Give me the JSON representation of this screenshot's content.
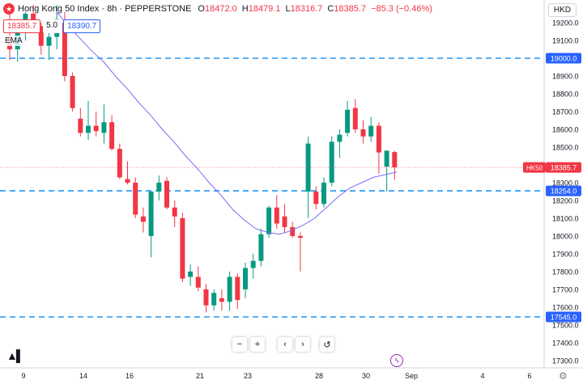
{
  "header": {
    "title": "Hong Kong 50 Index · 8h · PEPPERSTONE",
    "open_label": "O",
    "open": "18472.0",
    "high_label": "H",
    "high": "18479.1",
    "low_label": "L",
    "low": "18316.7",
    "close_label": "C",
    "close": "18385.7",
    "change": "−85.3 (−0.46%)"
  },
  "trade": {
    "sell": "18385.7",
    "spread": "5.0",
    "buy": "18390.7"
  },
  "indicator": "EMA",
  "currency": "HKD",
  "chart_data": {
    "type": "candlestick",
    "symbol": "HK50",
    "y_ticks": [
      17300,
      17400,
      17500,
      17600,
      17700,
      17800,
      17900,
      18000,
      18100,
      18200,
      18300,
      18400,
      18500,
      18600,
      18700,
      18800,
      18900,
      19000,
      19100,
      19200
    ],
    "x_ticks": [
      "9",
      "14",
      "16",
      "21",
      "23",
      "28",
      "30",
      "Sep",
      "4",
      "6"
    ],
    "horizontal_levels": [
      {
        "value": 19000.0,
        "label": "19000.0"
      },
      {
        "value": 18254.0,
        "label": "18254.0"
      },
      {
        "value": 17545.0,
        "label": "17545.0"
      }
    ],
    "last_price": {
      "label": "HK50",
      "value": "18385.7"
    },
    "candles": [
      {
        "o": 19120,
        "h": 19260,
        "l": 18990,
        "c": 19050
      },
      {
        "o": 19050,
        "h": 19200,
        "l": 18980,
        "c": 19180
      },
      {
        "o": 19180,
        "h": 19260,
        "l": 19100,
        "c": 19250
      },
      {
        "o": 19250,
        "h": 19300,
        "l": 19150,
        "c": 19180
      },
      {
        "o": 19180,
        "h": 19200,
        "l": 19020,
        "c": 19070
      },
      {
        "o": 19070,
        "h": 19150,
        "l": 18990,
        "c": 19120
      },
      {
        "o": 19120,
        "h": 19300,
        "l": 19050,
        "c": 19220
      },
      {
        "o": 19200,
        "h": 19260,
        "l": 18870,
        "c": 18900
      },
      {
        "o": 18900,
        "h": 18920,
        "l": 18700,
        "c": 18720
      },
      {
        "o": 18660,
        "h": 18720,
        "l": 18560,
        "c": 18580
      },
      {
        "o": 18580,
        "h": 18760,
        "l": 18540,
        "c": 18620
      },
      {
        "o": 18620,
        "h": 18700,
        "l": 18560,
        "c": 18590
      },
      {
        "o": 18580,
        "h": 18740,
        "l": 18520,
        "c": 18640
      },
      {
        "o": 18640,
        "h": 18680,
        "l": 18480,
        "c": 18490
      },
      {
        "o": 18490,
        "h": 18520,
        "l": 18320,
        "c": 18330
      },
      {
        "o": 18320,
        "h": 18420,
        "l": 18290,
        "c": 18300
      },
      {
        "o": 18300,
        "h": 18330,
        "l": 18100,
        "c": 18120
      },
      {
        "o": 18110,
        "h": 18160,
        "l": 18020,
        "c": 18080
      },
      {
        "o": 18000,
        "h": 18250,
        "l": 17880,
        "c": 18250
      },
      {
        "o": 18250,
        "h": 18340,
        "l": 18200,
        "c": 18300
      },
      {
        "o": 18310,
        "h": 18330,
        "l": 18150,
        "c": 18160
      },
      {
        "o": 18160,
        "h": 18200,
        "l": 18050,
        "c": 18110
      },
      {
        "o": 18100,
        "h": 18130,
        "l": 17740,
        "c": 17760
      },
      {
        "o": 17770,
        "h": 17840,
        "l": 17720,
        "c": 17800
      },
      {
        "o": 17770,
        "h": 17830,
        "l": 17690,
        "c": 17710
      },
      {
        "o": 17700,
        "h": 17730,
        "l": 17570,
        "c": 17610
      },
      {
        "o": 17610,
        "h": 17700,
        "l": 17580,
        "c": 17680
      },
      {
        "o": 17650,
        "h": 17700,
        "l": 17580,
        "c": 17630
      },
      {
        "o": 17630,
        "h": 17800,
        "l": 17580,
        "c": 17770
      },
      {
        "o": 17770,
        "h": 17790,
        "l": 17590,
        "c": 17640
      },
      {
        "o": 17700,
        "h": 17850,
        "l": 17650,
        "c": 17820
      },
      {
        "o": 17820,
        "h": 17900,
        "l": 17760,
        "c": 17860
      },
      {
        "o": 17860,
        "h": 18040,
        "l": 17830,
        "c": 18010
      },
      {
        "o": 18010,
        "h": 18170,
        "l": 17990,
        "c": 18160
      },
      {
        "o": 18160,
        "h": 18230,
        "l": 18040,
        "c": 18070
      },
      {
        "o": 18110,
        "h": 18180,
        "l": 18020,
        "c": 18050
      },
      {
        "o": 18050,
        "h": 18080,
        "l": 17990,
        "c": 18000
      },
      {
        "o": 18000,
        "h": 18020,
        "l": 17800,
        "c": 17990
      },
      {
        "o": 18250,
        "h": 18560,
        "l": 18100,
        "c": 18520
      },
      {
        "o": 18250,
        "h": 18280,
        "l": 18150,
        "c": 18180
      },
      {
        "o": 18180,
        "h": 18330,
        "l": 18160,
        "c": 18300
      },
      {
        "o": 18300,
        "h": 18560,
        "l": 18280,
        "c": 18530
      },
      {
        "o": 18530,
        "h": 18600,
        "l": 18440,
        "c": 18570
      },
      {
        "o": 18580,
        "h": 18760,
        "l": 18560,
        "c": 18710
      },
      {
        "o": 18720,
        "h": 18770,
        "l": 18580,
        "c": 18600
      },
      {
        "o": 18600,
        "h": 18650,
        "l": 18520,
        "c": 18560
      },
      {
        "o": 18560,
        "h": 18670,
        "l": 18530,
        "c": 18620
      },
      {
        "o": 18620,
        "h": 18640,
        "l": 18350,
        "c": 18470
      },
      {
        "o": 18390,
        "h": 18480,
        "l": 18250,
        "c": 18480
      },
      {
        "o": 18472,
        "h": 18479,
        "l": 18317,
        "c": 18386
      }
    ],
    "ema": [
      19260,
      19180,
      19110,
      19040,
      18980,
      18900,
      18830,
      18750,
      18680,
      18600,
      18530,
      18450,
      18380,
      18300,
      18230,
      18150,
      18090,
      18040,
      18020,
      18010,
      18030,
      18060,
      18100,
      18160,
      18220,
      18270,
      18300,
      18330,
      18345,
      18360
    ]
  }
}
